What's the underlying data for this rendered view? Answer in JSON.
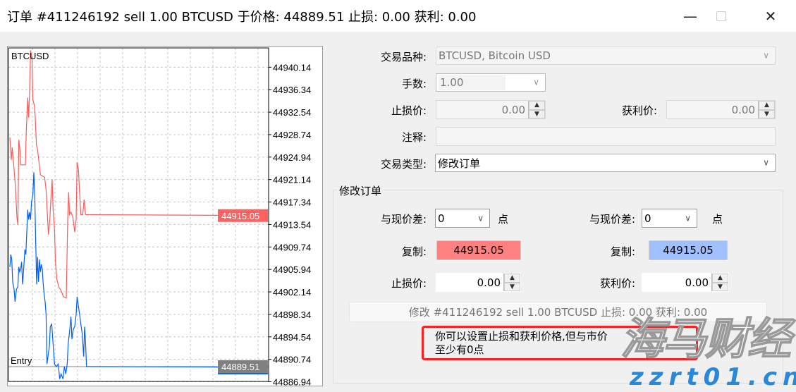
{
  "window": {
    "title": "订单 #411246192 sell 1.00 BTCUSD 于价格: 44889.51 止损: 0.00 获利: 0.00",
    "minimize_icon": "minimize-icon",
    "maximize_icon": "maximize-icon",
    "close_icon": "close-icon"
  },
  "form": {
    "symbol_label": "交易品种:",
    "symbol_value": "BTCUSD, Bitcoin USD",
    "lots_label": "手数:",
    "lots_value": "1.00",
    "sl_label": "止损价:",
    "sl_value": "0.00",
    "tp_label": "获利价:",
    "tp_value": "0.00",
    "comment_label": "注释:",
    "comment_value": "",
    "type_label": "交易类型:",
    "type_value": "修改订单"
  },
  "modify": {
    "group_title": "修改订单",
    "sl_diff_label": "与现价差:",
    "sl_diff_value": "0",
    "points_label": "点",
    "tp_diff_label": "与现价差:",
    "tp_diff_value": "0",
    "copy_label": "复制:",
    "sl_copy_value": "44915.05",
    "tp_copy_value": "44915.05",
    "sl_label": "止损价:",
    "sl_value": "0.00",
    "tp_label": "获利价:",
    "tp_value": "0.00",
    "button_label": "修改 #411246192 sell 1.00 BTCUSD 止损: 0.00 获利: 0.00",
    "note": "你可以设置止损和获利价格,但与市价至少有0点",
    "colors": {
      "sl_copy": "#ff8080",
      "tp_copy": "#a0c0ff",
      "highlight_box": "#ff2020"
    }
  },
  "watermark": {
    "name": "海马财经",
    "url": "zzrt01.cn"
  },
  "chart_data": {
    "type": "line",
    "title": "BTCUSD",
    "ylim": [
      44887.0,
      44943.4
    ],
    "grid": true,
    "yticks": [
      "44940.14",
      "44936.34",
      "44932.54",
      "44928.74",
      "44924.94",
      "44921.14",
      "44917.34",
      "44913.54",
      "44909.74",
      "44905.94",
      "44902.14",
      "44898.34",
      "44894.54",
      "44890.74",
      "44886.94"
    ],
    "ask_price": "44915.05",
    "entry_price": "44889.51",
    "entry_label": "Entry",
    "colors": {
      "ask": "#ff5a5a",
      "bid": "#0060ff",
      "entry": "#808080"
    },
    "series": [
      {
        "key": "ask",
        "x": [
          42,
          48,
          52,
          60,
          65,
          72,
          76,
          80,
          85,
          88,
          108,
          112,
          118,
          122,
          126,
          130,
          136,
          140,
          146,
          150,
          155,
          160,
          166,
          172,
          190,
          196,
          200,
          206,
          212,
          218,
          222,
          226,
          232,
          236,
          242,
          250,
          262,
          270,
          282,
          288,
          292,
          296,
          302,
          310,
          318,
          324,
          328,
          334,
          338,
          344,
          352,
          358,
          364,
          1140
        ],
        "y": [
          44928.27,
          44924.48,
          44926.58,
          44922.79,
          44920.26,
          44914.79,
          44913.53,
          44927.84,
          44926.16,
          44923.63,
          44923.63,
          44929.53,
          44935.0,
          44931.63,
          44936.27,
          44943.0,
          44941.74,
          44934.58,
          44933.74,
          44931.63,
          44927.0,
          44926.16,
          44924.05,
          44921.95,
          44921.53,
          44919.42,
          44916.47,
          44911.84,
          44914.37,
          44919.0,
          44921.11,
          44916.05,
          44912.68,
          44907.21,
          44904.26,
          44903.0,
          44902.16,
          44901.31,
          44901.1,
          44914.37,
          44919.0,
          44915.21,
          44915.63,
          44914.79,
          44912.26,
          44914.37,
          44924.05,
          44922.79,
          44919.42,
          44915.21,
          44915.21,
          44917.74,
          44915.21,
          44915.05
        ]
      },
      {
        "key": "bid",
        "x": [
          42,
          46,
          50,
          54,
          60,
          64,
          70,
          76,
          80,
          84,
          88,
          92,
          96,
          100,
          106,
          110,
          114,
          118,
          122,
          126,
          130,
          134,
          140,
          144,
          148,
          152,
          156,
          160,
          164,
          168,
          172,
          176,
          180,
          184,
          188,
          192,
          196,
          200,
          204,
          210,
          214,
          220,
          226,
          232,
          240,
          248,
          254,
          260,
          268,
          274,
          280,
          286,
          290,
          296,
          302,
          306,
          312,
          318,
          324,
          328,
          334,
          340,
          344,
          350,
          356,
          360,
          364,
          368,
          1140
        ],
        "y": [
          44906.37,
          44908.47,
          44907.63,
          44903.84,
          44902.58,
          44900.47,
          44902.58,
          44903.0,
          44906.37,
          44905.53,
          44905.95,
          44907.21,
          44903.42,
          44905.53,
          44909.32,
          44908.47,
          44912.26,
          44916.05,
          44914.37,
          44915.63,
          44914.37,
          44917.32,
          44918.58,
          44922.37,
          44918.16,
          44910.58,
          44903.42,
          44908.05,
          44903.84,
          44907.63,
          44905.53,
          44906.79,
          44905.95,
          44903.42,
          44901.74,
          44900.47,
          44898.37,
          44889.94,
          44891.21,
          44892.89,
          44896.26,
          44896.68,
          44893.31,
          44889.94,
          44889.52,
          44889.94,
          44887.42,
          44888.26,
          44887.42,
          44889.52,
          44888.26,
          44889.94,
          44893.31,
          44895.42,
          44897.95,
          44894.16,
          44895.84,
          44896.26,
          44898.37,
          44901.31,
          44899.63,
          44897.95,
          44896.68,
          44895.0,
          44891.21,
          44896.26,
          44893.73,
          44889.52,
          44889.4
        ]
      }
    ]
  }
}
